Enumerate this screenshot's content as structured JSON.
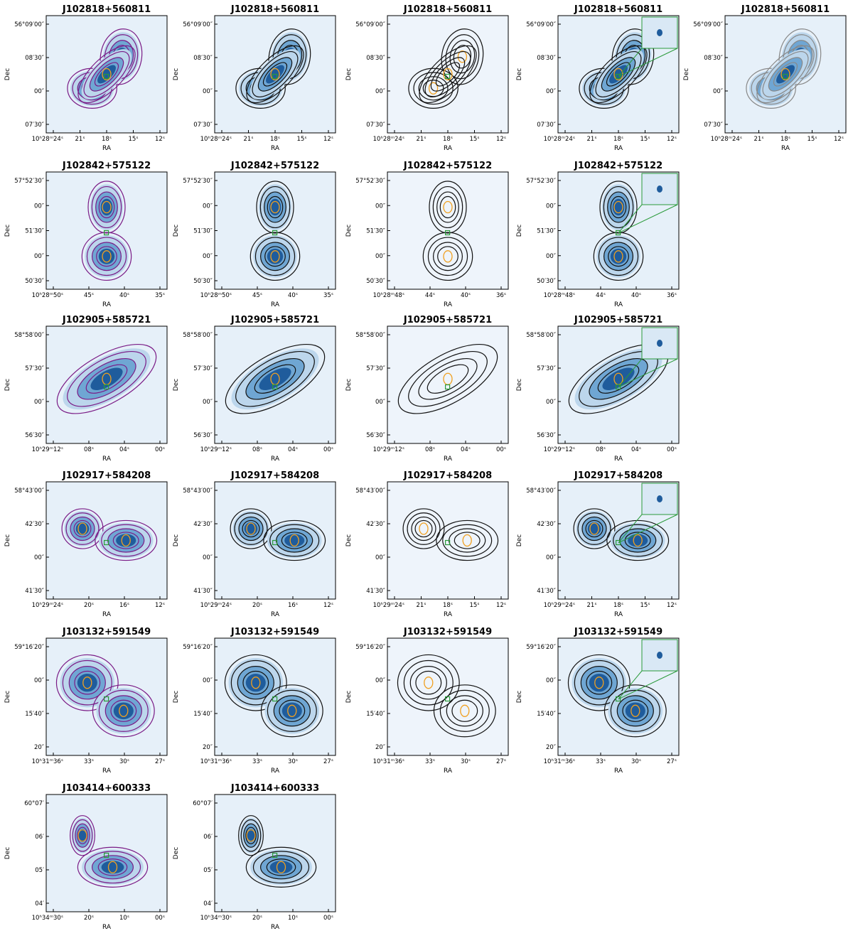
{
  "figure": {
    "x_label": "RA",
    "y_label": "Dec",
    "rows": [
      {
        "title": "J102818+560811",
        "panels": [
          {
            "xticks": [
              "10ʰ28ᵐ24ˢ",
              "21ˢ",
              "18ˢ",
              "15ˢ",
              "12ˢ"
            ],
            "yticks": [
              "56°09′00″",
              "08′30″",
              "00″",
              "07′30″"
            ]
          },
          {
            "xticks": [
              "10ʰ28ᵐ24ˢ",
              "21ˢ",
              "18ˢ",
              "15ˢ",
              "12ˢ"
            ],
            "yticks": [
              "56°09′00″",
              "08′30″",
              "00″",
              "07′30″"
            ]
          },
          {
            "xticks": [
              "10ʰ28ᵐ24ˢ",
              "21ˢ",
              "18ˢ",
              "15ˢ",
              "12ˢ"
            ],
            "yticks": [
              "56°09′00″",
              "08′30″",
              "00″",
              "07′30″"
            ]
          },
          {
            "xticks": [
              "10ʰ28ᵐ24ˢ",
              "21ˢ",
              "18ˢ",
              "15ˢ",
              "12ˢ"
            ],
            "yticks": [
              "56°09′00″",
              "08′30″",
              "00″",
              "07′30″"
            ]
          },
          {
            "xticks": [
              "10ʰ28ᵐ24ˢ",
              "21ˢ",
              "18ˢ",
              "15ˢ",
              "12ˢ"
            ],
            "yticks": [
              "56°09′00″",
              "08′30″",
              "00″",
              "07′30″"
            ]
          }
        ]
      },
      {
        "title": "J102842+575122",
        "panels": [
          {
            "xticks": [
              "10ʰ28ᵐ50ˢ",
              "45ˢ",
              "40ˢ",
              "35ˢ"
            ],
            "yticks": [
              "57°52′30″",
              "00″",
              "51′30″",
              "00″",
              "50′30″"
            ]
          },
          {
            "xticks": [
              "10ʰ28ᵐ50ˢ",
              "45ˢ",
              "40ˢ",
              "35ˢ"
            ],
            "yticks": [
              "57°52′30″",
              "00″",
              "51′30″",
              "00″",
              "50′30″"
            ]
          },
          {
            "xticks": [
              "10ʰ28ᵐ48ˢ",
              "44ˢ",
              "40ˢ",
              "36ˢ"
            ],
            "yticks": [
              "57°52′30″",
              "00″",
              "51′30″",
              "00″",
              "50′30″"
            ]
          },
          {
            "xticks": [
              "10ʰ28ᵐ48ˢ",
              "44ˢ",
              "40ˢ",
              "36ˢ"
            ],
            "yticks": [
              "57°52′30″",
              "00″",
              "51′30″",
              "00″",
              "50′30″"
            ]
          }
        ]
      },
      {
        "title": "J102905+585721",
        "panels": [
          {
            "xticks": [
              "10ʰ29ᵐ12ˢ",
              "08ˢ",
              "04ˢ",
              "00ˢ"
            ],
            "yticks": [
              "58°58′00″",
              "57′30″",
              "00″",
              "56′30″"
            ]
          },
          {
            "xticks": [
              "10ʰ29ᵐ12ˢ",
              "08ˢ",
              "04ˢ",
              "00ˢ"
            ],
            "yticks": [
              "58°58′00″",
              "57′30″",
              "00″",
              "56′30″"
            ]
          },
          {
            "xticks": [
              "10ʰ29ᵐ12ˢ",
              "08ˢ",
              "04ˢ",
              "00ˢ"
            ],
            "yticks": [
              "58°58′00″",
              "57′30″",
              "00″",
              "56′30″"
            ]
          },
          {
            "xticks": [
              "10ʰ29ᵐ12ˢ",
              "08ˢ",
              "04ˢ",
              "00ˢ"
            ],
            "yticks": [
              "58°58′00″",
              "57′30″",
              "00″",
              "56′30″"
            ]
          }
        ]
      },
      {
        "title": "J102917+584208",
        "panels": [
          {
            "xticks": [
              "10ʰ29ᵐ24ˢ",
              "20ˢ",
              "16ˢ",
              "12ˢ"
            ],
            "yticks": [
              "58°43′00″",
              "42′30″",
              "00″",
              "41′30″"
            ]
          },
          {
            "xticks": [
              "10ʰ29ᵐ24ˢ",
              "20ˢ",
              "16ˢ",
              "12ˢ"
            ],
            "yticks": [
              "58°43′00″",
              "42′30″",
              "00″",
              "41′30″"
            ]
          },
          {
            "xticks": [
              "10ʰ29ᵐ24ˢ",
              "21ˢ",
              "18ˢ",
              "15ˢ",
              "12ˢ"
            ],
            "yticks": [
              "58°43′00″",
              "42′30″",
              "00″",
              "41′30″"
            ]
          },
          {
            "xticks": [
              "10ʰ29ᵐ24ˢ",
              "21ˢ",
              "18ˢ",
              "15ˢ",
              "12ˢ"
            ],
            "yticks": [
              "58°43′00″",
              "42′30″",
              "00″",
              "41′30″"
            ]
          }
        ]
      },
      {
        "title": "J103132+591549",
        "panels": [
          {
            "xticks": [
              "10ʰ31ᵐ36ˢ",
              "33ˢ",
              "30ˢ",
              "27ˢ"
            ],
            "yticks": [
              "59°16′20″",
              "00″",
              "15′40″",
              "20″"
            ]
          },
          {
            "xticks": [
              "10ʰ31ᵐ36ˢ",
              "33ˢ",
              "30ˢ",
              "27ˢ"
            ],
            "yticks": [
              "59°16′20″",
              "00″",
              "15′40″",
              "20″"
            ]
          },
          {
            "xticks": [
              "10ʰ31ᵐ36ˢ",
              "33ˢ",
              "30ˢ",
              "27ˢ"
            ],
            "yticks": [
              "59°16′20″",
              "00″",
              "15′40″",
              "20″"
            ]
          },
          {
            "xticks": [
              "10ʰ31ᵐ36ˢ",
              "33ˢ",
              "30ˢ",
              "27ˢ"
            ],
            "yticks": [
              "59°16′20″",
              "00″",
              "15′40″",
              "20″"
            ]
          }
        ]
      },
      {
        "title": "J103414+600333",
        "panels": [
          {
            "xticks": [
              "10ʰ34ᵐ30ˢ",
              "20ˢ",
              "10ˢ",
              "00ˢ"
            ],
            "yticks": [
              "60°07′",
              "06′",
              "05′",
              "04′"
            ]
          },
          {
            "xticks": [
              "10ʰ34ᵐ30ˢ",
              "20ˢ",
              "10ˢ",
              "00ˢ"
            ],
            "yticks": [
              "60°07′",
              "06′",
              "05′",
              "04′"
            ]
          }
        ]
      }
    ]
  }
}
